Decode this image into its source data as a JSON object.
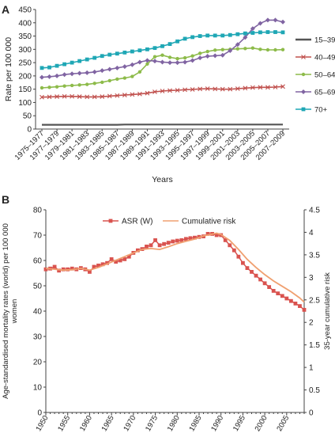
{
  "figure": {
    "panels": [
      "A",
      "B"
    ]
  },
  "chart_data": [
    {
      "panel_label": "A",
      "type": "line",
      "xlabel": "Years",
      "ylabel": "Rate per 100 000",
      "ylim": [
        0,
        450
      ],
      "yticks": [
        0,
        50,
        100,
        150,
        200,
        250,
        300,
        350,
        400,
        450
      ],
      "grid": false,
      "legend_position": "right",
      "x": [
        "1975–1977",
        "1976–1978",
        "1977–1979",
        "1978–1980",
        "1979–1981",
        "1980–1982",
        "1981–1983",
        "1982–1984",
        "1983–1985",
        "1984–1986",
        "1985–1987",
        "1986–1988",
        "1987–1989",
        "1988–1990",
        "1989–1991",
        "1990–1992",
        "1991–1993",
        "1992–1994",
        "1993–1995",
        "1994–1996",
        "1995–1997",
        "1996–1998",
        "1997–1999",
        "1998–2000",
        "1999–2001",
        "2000–2002",
        "2001–2003",
        "2002–2004",
        "2003–2005",
        "2004–2006",
        "2005–2007",
        "2006–2008",
        "2007–2009"
      ],
      "x_tick_labels": [
        "1975–1977",
        "1977–1979",
        "1979–1981",
        "1981–1983",
        "1983–1985",
        "1985–1987",
        "1987–1989",
        "1989–1991",
        "1991–1993",
        "1993–1995",
        "1995–1997",
        "1997–1999",
        "1999–2001",
        "2001–2003",
        "2003–2005",
        "2005–2007",
        "2007–2009"
      ],
      "series": [
        {
          "name": "15–39",
          "color": "#555555",
          "marker": "none",
          "values": [
            16,
            16,
            16,
            16,
            16,
            16,
            16,
            16,
            16,
            16,
            16,
            17,
            17,
            17,
            17,
            17,
            17,
            17,
            17,
            17,
            17,
            17,
            17,
            17,
            17,
            17,
            17,
            17,
            17,
            17,
            17,
            17,
            17
          ]
        },
        {
          "name": "40–49",
          "color": "#c0504d",
          "marker": "x",
          "values": [
            120,
            121,
            122,
            123,
            123,
            122,
            121,
            121,
            122,
            124,
            126,
            128,
            130,
            132,
            135,
            140,
            143,
            145,
            146,
            148,
            149,
            151,
            152,
            151,
            150,
            150,
            152,
            154,
            156,
            157,
            157,
            158,
            160
          ]
        },
        {
          "name": "50–64",
          "color": "#8dbb4a",
          "marker": "circle",
          "values": [
            155,
            157,
            159,
            162,
            164,
            166,
            168,
            172,
            176,
            182,
            188,
            192,
            198,
            215,
            245,
            272,
            278,
            270,
            265,
            268,
            275,
            285,
            292,
            297,
            299,
            300,
            302,
            303,
            305,
            300,
            298,
            298,
            299
          ]
        },
        {
          "name": "65–69",
          "color": "#8064a2",
          "marker": "diamond",
          "values": [
            195,
            197,
            200,
            205,
            208,
            210,
            212,
            215,
            220,
            225,
            230,
            235,
            242,
            252,
            258,
            256,
            252,
            250,
            250,
            252,
            258,
            268,
            274,
            276,
            278,
            295,
            318,
            345,
            378,
            398,
            410,
            410,
            403
          ]
        },
        {
          "name": "70+",
          "color": "#1fa7b5",
          "marker": "square",
          "values": [
            230,
            232,
            238,
            244,
            250,
            256,
            262,
            268,
            275,
            280,
            284,
            288,
            292,
            296,
            300,
            305,
            312,
            320,
            330,
            340,
            346,
            350,
            352,
            352,
            352,
            354,
            357,
            360,
            362,
            364,
            365,
            365,
            364
          ]
        }
      ]
    },
    {
      "panel_label": "B",
      "type": "line",
      "ylabel": "Age-standardised mortality rates (world) per 100 000 women",
      "y2label": "35-year cumulative risk",
      "ylim": [
        0,
        80
      ],
      "yticks": [
        0,
        10,
        20,
        30,
        40,
        50,
        60,
        70,
        80
      ],
      "y2lim": [
        0,
        4.5
      ],
      "y2ticks": [
        "0",
        "0.5",
        "1",
        "1.5",
        "2",
        "2.5",
        "3",
        "3.5",
        "4",
        "4.5"
      ],
      "xlim": [
        1950,
        2009
      ],
      "xticks": [
        1950,
        1955,
        1960,
        1965,
        1970,
        1975,
        1980,
        1985,
        1990,
        1995,
        2000,
        2005
      ],
      "grid": false,
      "legend_position": "top",
      "series": [
        {
          "name": "ASR (W)",
          "color": "#d9534f",
          "marker": "square",
          "axis": "left",
          "x": [
            1950,
            1951,
            1952,
            1953,
            1954,
            1955,
            1956,
            1957,
            1958,
            1959,
            1960,
            1961,
            1962,
            1963,
            1964,
            1965,
            1966,
            1967,
            1968,
            1969,
            1970,
            1971,
            1972,
            1973,
            1974,
            1975,
            1976,
            1977,
            1978,
            1979,
            1980,
            1981,
            1982,
            1983,
            1984,
            1985,
            1986,
            1987,
            1988,
            1989,
            1990,
            1991,
            1992,
            1993,
            1994,
            1995,
            1996,
            1997,
            1998,
            1999,
            2000,
            2001,
            2002,
            2003,
            2004,
            2005,
            2006,
            2007,
            2008,
            2009
          ],
          "values": [
            56.5,
            56.8,
            57.5,
            56.0,
            56.5,
            56.5,
            56.8,
            56.5,
            57.0,
            56.5,
            55.5,
            57.5,
            58.0,
            58.5,
            59.0,
            60.5,
            59.5,
            60.0,
            60.5,
            61.5,
            63.0,
            64.0,
            64.5,
            65.5,
            66.0,
            68.0,
            66.0,
            66.5,
            67.0,
            67.5,
            67.8,
            68.0,
            68.5,
            68.8,
            69.0,
            69.3,
            69.5,
            70.5,
            70.5,
            70.0,
            70.0,
            68.0,
            66.0,
            64.0,
            61.5,
            59.0,
            57.0,
            55.5,
            54.0,
            52.5,
            51.0,
            49.5,
            48.0,
            47.0,
            46.0,
            45.0,
            44.0,
            43.0,
            42.0,
            40.5
          ]
        },
        {
          "name": "Cumulative risk",
          "color": "#f0a070",
          "marker": "none",
          "axis": "right",
          "x": [
            1950,
            1952,
            1954,
            1956,
            1958,
            1960,
            1962,
            1964,
            1966,
            1968,
            1970,
            1972,
            1974,
            1976,
            1978,
            1980,
            1982,
            1984,
            1986,
            1988,
            1989,
            1990,
            1992,
            1994,
            1996,
            1998,
            2000,
            2002,
            2004,
            2006,
            2008,
            2009
          ],
          "values": [
            3.2,
            3.18,
            3.16,
            3.17,
            3.2,
            3.16,
            3.22,
            3.3,
            3.38,
            3.46,
            3.54,
            3.62,
            3.64,
            3.62,
            3.68,
            3.75,
            3.8,
            3.85,
            3.92,
            3.96,
            3.98,
            3.95,
            3.82,
            3.62,
            3.4,
            3.22,
            3.06,
            2.92,
            2.8,
            2.68,
            2.54,
            2.45
          ]
        }
      ]
    }
  ]
}
